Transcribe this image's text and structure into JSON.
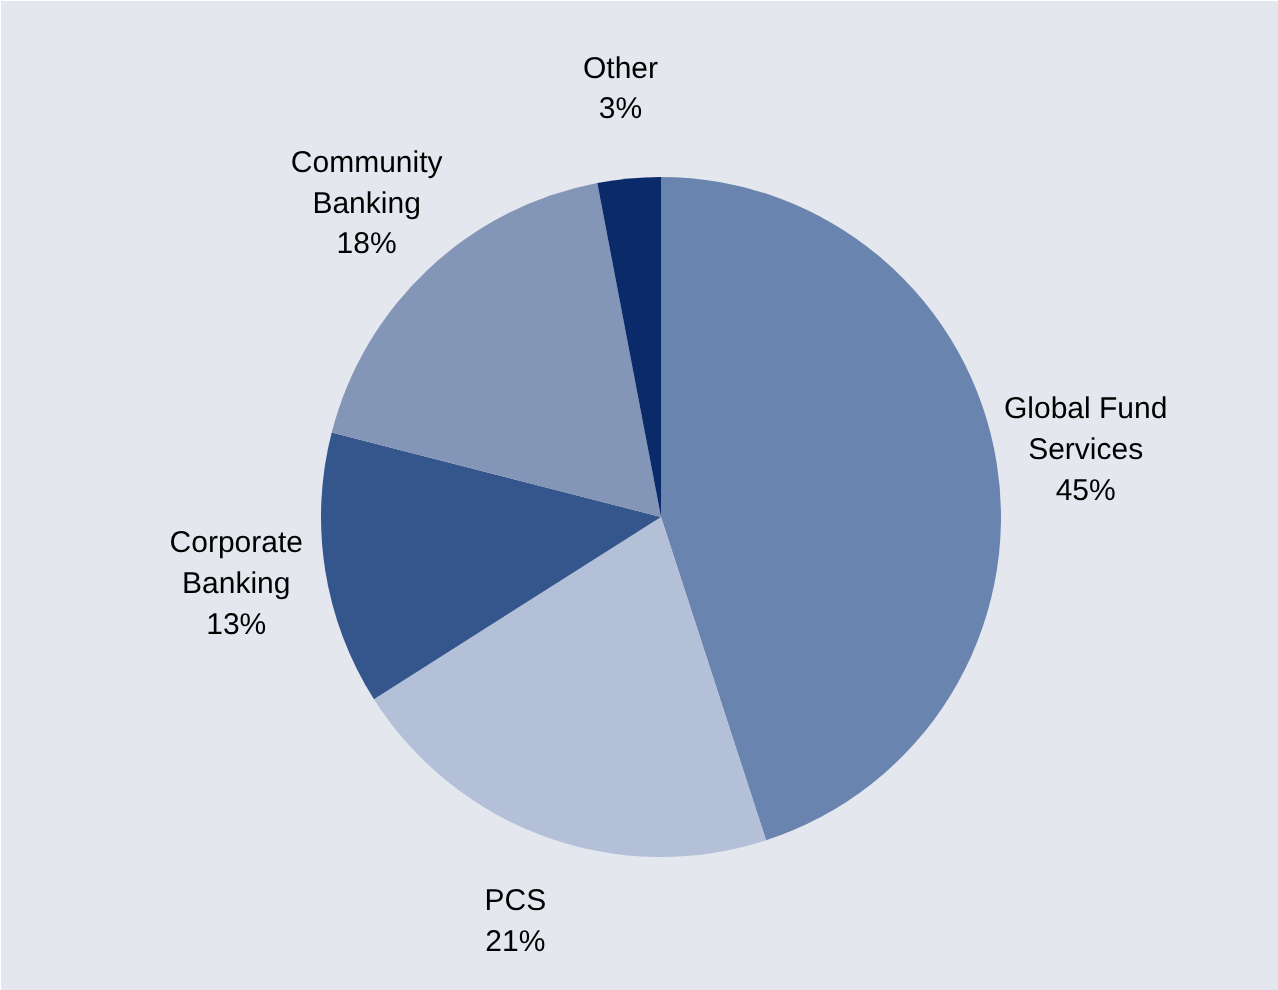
{
  "chart_data": {
    "type": "pie",
    "categories": [
      "Global Fund\nServices",
      "PCS",
      "Corporate\nBanking",
      "Community\nBanking",
      "Other"
    ],
    "values": [
      45,
      21,
      13,
      18,
      3
    ],
    "colors": [
      "#6a84b0",
      "#b3c0d8",
      "#34568c",
      "#8496b8",
      "#0a2a6a"
    ],
    "value_labels": [
      "45%",
      "21%",
      "13%",
      "18%",
      "3%"
    ]
  }
}
